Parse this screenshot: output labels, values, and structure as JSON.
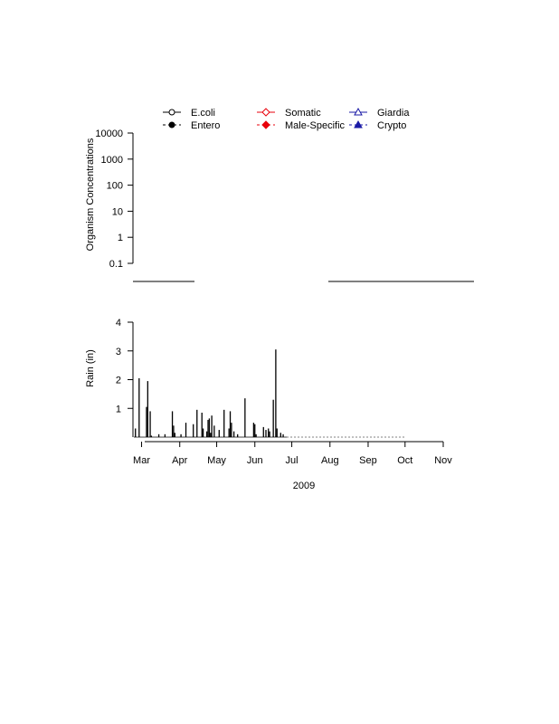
{
  "legend": {
    "items": [
      {
        "label": "E.coli",
        "color": "#000000",
        "marker": "open-circle",
        "line": "solid"
      },
      {
        "label": "Entero",
        "color": "#000000",
        "marker": "filled-circle",
        "line": "dashed"
      },
      {
        "label": "Somatic",
        "color": "#e8000b",
        "marker": "open-diamond",
        "line": "solid"
      },
      {
        "label": "Male-Specific",
        "color": "#e8000b",
        "marker": "filled-diamond",
        "line": "dashed"
      },
      {
        "label": "Giardia",
        "color": "#1a1aa6",
        "marker": "open-triangle",
        "line": "solid"
      },
      {
        "label": "Crypto",
        "color": "#1a1aa6",
        "marker": "filled-triangle",
        "line": "dashed"
      }
    ]
  },
  "chart_data": [
    {
      "type": "line",
      "ylabel": "Organism Concentrations",
      "yscale": "log",
      "ylim": [
        0.1,
        10000
      ],
      "yticks": [
        "0.1",
        "1",
        "10",
        "100",
        "1000",
        "10000"
      ],
      "series": []
    },
    {
      "type": "bar",
      "xlabel": "2009",
      "ylabel": "Rain (in)",
      "ylim": [
        0,
        4
      ],
      "yticks": [
        "1",
        "2",
        "3",
        "4"
      ],
      "xticks": [
        "Mar",
        "Apr",
        "May",
        "Jun",
        "Jul",
        "Aug",
        "Sep",
        "Oct",
        "Nov"
      ],
      "xlim": [
        "2009-02-22",
        "2009-11-01"
      ],
      "x": [
        "2009-02-24",
        "2009-02-27",
        "2009-03-05",
        "2009-03-06",
        "2009-03-08",
        "2009-03-09",
        "2009-03-15",
        "2009-03-20",
        "2009-03-26",
        "2009-03-27",
        "2009-03-28",
        "2009-04-02",
        "2009-04-06",
        "2009-04-12",
        "2009-04-15",
        "2009-04-19",
        "2009-04-20",
        "2009-04-23",
        "2009-04-24",
        "2009-04-25",
        "2009-04-26",
        "2009-04-27",
        "2009-04-29",
        "2009-05-03",
        "2009-05-07",
        "2009-05-11",
        "2009-05-12",
        "2009-05-13",
        "2009-05-15",
        "2009-05-18",
        "2009-05-24",
        "2009-05-31",
        "2009-06-01",
        "2009-06-02",
        "2009-06-08",
        "2009-06-10",
        "2009-06-12",
        "2009-06-13",
        "2009-06-16",
        "2009-06-18",
        "2009-06-19",
        "2009-06-22",
        "2009-06-24"
      ],
      "values": [
        0.3,
        2.05,
        1.05,
        1.95,
        0.9,
        0.05,
        0.1,
        0.1,
        0.9,
        0.4,
        0.15,
        0.1,
        0.5,
        0.45,
        0.95,
        0.85,
        0.3,
        0.2,
        0.6,
        0.65,
        0.15,
        0.75,
        0.4,
        0.25,
        0.95,
        0.3,
        0.9,
        0.5,
        0.2,
        0.1,
        1.35,
        0.5,
        0.45,
        0.1,
        0.35,
        0.25,
        0.3,
        0.2,
        1.3,
        3.05,
        0.3,
        0.15,
        0.1
      ],
      "dashed_baseline_to": "2009-10-01"
    }
  ]
}
